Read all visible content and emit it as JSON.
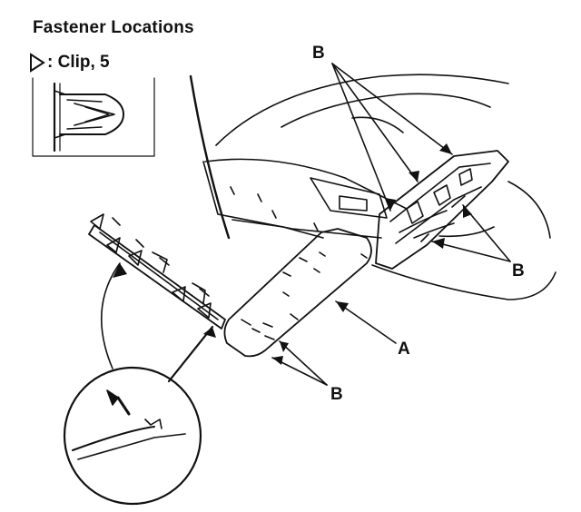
{
  "title": "Fastener Locations",
  "legend": {
    "symbol": "triangle-outline",
    "text": ": Clip, 5"
  },
  "callouts": {
    "b_top": "B",
    "b_right": "B",
    "b_bottom": "B",
    "a": "A"
  },
  "colors": {
    "ink": "#111111",
    "paper": "#ffffff"
  }
}
